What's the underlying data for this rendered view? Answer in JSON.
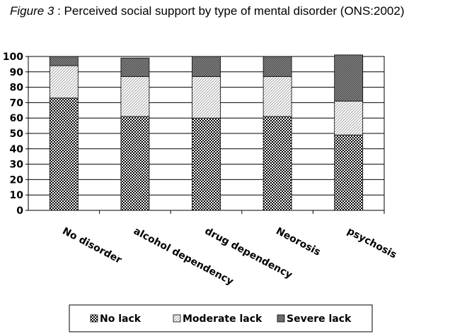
{
  "figure": {
    "title_prefix": "Figure 3",
    "title_rest": " : Perceived social support by type of mental disorder (ONS:2002)"
  },
  "chart_data": {
    "type": "bar",
    "stacked": true,
    "title": "Figure 3 : Perceived social support by type of mental disorder (ONS:2002)",
    "categories": [
      "No disorder",
      "alcohol dependency",
      "drug dependency",
      "Neorosis",
      "psychosis"
    ],
    "series": [
      {
        "name": "No lack",
        "pattern": "checker",
        "values": [
          73,
          61,
          60,
          61,
          49
        ]
      },
      {
        "name": "Moderate lack",
        "pattern": "diagonal-light",
        "values": [
          21,
          26,
          27,
          26,
          22
        ]
      },
      {
        "name": "Severe lack",
        "pattern": "dense-gray",
        "values": [
          6,
          12,
          13,
          13,
          30
        ]
      }
    ],
    "ylim": [
      0,
      100
    ],
    "yticks": [
      0,
      10,
      20,
      30,
      40,
      50,
      60,
      70,
      80,
      90,
      100
    ],
    "grid": true,
    "legend_position": "bottom",
    "xlabel": "",
    "ylabel": ""
  }
}
